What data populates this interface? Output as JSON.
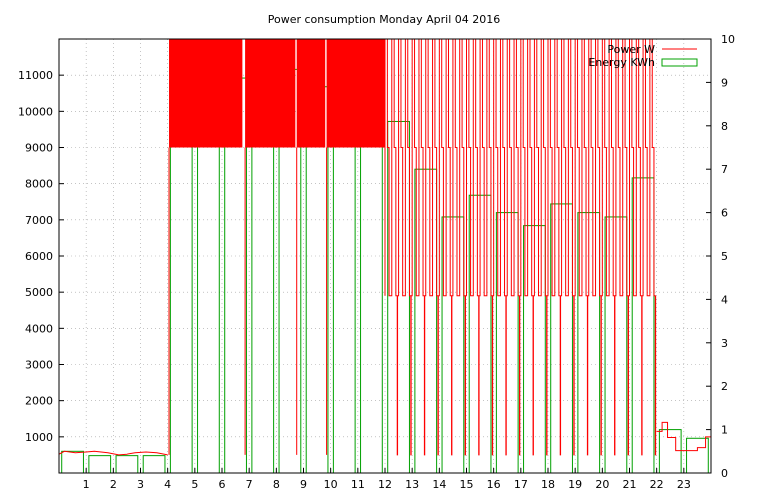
{
  "chart_data": {
    "type": "line",
    "title": "Power consumption Monday April 04 2016",
    "x_ticks": [
      "1",
      "2",
      "3",
      "4",
      "5",
      "6",
      "7",
      "8",
      "9",
      "10",
      "11",
      "12",
      "13",
      "14",
      "15",
      "16",
      "17",
      "18",
      "19",
      "20",
      "21",
      "22",
      "23"
    ],
    "xlim": [
      0,
      24
    ],
    "y_ticks": [
      "1000",
      "2000",
      "3000",
      "4000",
      "5000",
      "6000",
      "7000",
      "8000",
      "9000",
      "10000",
      "11000"
    ],
    "ylim": [
      0,
      12000
    ],
    "y2_ticks": [
      "0",
      "1",
      "2",
      "3",
      "4",
      "5",
      "6",
      "7",
      "8",
      "9",
      "10"
    ],
    "y2lim": [
      0,
      10
    ],
    "grid": true,
    "legend_position": "top-right",
    "colors": {
      "power": "#ff0000",
      "energy": "#00a000"
    },
    "series": [
      {
        "name": "Power W",
        "axis": "y",
        "style": "line",
        "baseline_segments": [
          [
            0.0,
            520
          ],
          [
            0.2,
            600
          ],
          [
            0.6,
            560
          ],
          [
            1.0,
            580
          ],
          [
            1.3,
            600
          ],
          [
            1.8,
            560
          ],
          [
            2.2,
            500
          ],
          [
            2.5,
            520
          ],
          [
            2.8,
            560
          ],
          [
            3.2,
            580
          ],
          [
            3.6,
            560
          ],
          [
            4.0,
            500
          ]
        ],
        "saturated_periods": [
          [
            4.05,
            6.75
          ],
          [
            6.85,
            8.7
          ],
          [
            8.75,
            9.8
          ],
          [
            9.85,
            12.0
          ]
        ],
        "cycling_periods": [
          {
            "from": 12.0,
            "to": 22.0,
            "high": 9000,
            "low": 4900
          }
        ],
        "tail_segments": [
          [
            22.0,
            1150
          ],
          [
            22.2,
            1400
          ],
          [
            22.4,
            980
          ],
          [
            22.7,
            620
          ],
          [
            23.2,
            620
          ],
          [
            23.5,
            700
          ],
          [
            23.8,
            1000
          ],
          [
            24.0,
            900
          ]
        ]
      },
      {
        "name": "Energy KWh",
        "axis": "y2",
        "style": "steps",
        "hours": [
          0,
          1,
          2,
          3,
          4,
          5,
          6,
          7,
          8,
          9,
          10,
          11,
          12,
          13,
          14,
          15,
          16,
          17,
          18,
          19,
          20,
          21,
          22,
          23
        ],
        "values": [
          0.5,
          0.4,
          0.4,
          0.4,
          8.8,
          9.3,
          9.1,
          9.2,
          9.3,
          8.9,
          9.0,
          9.2,
          8.1,
          7.0,
          5.9,
          6.4,
          6.0,
          5.7,
          6.2,
          6.0,
          5.9,
          6.8,
          1.0,
          0.8
        ]
      }
    ]
  }
}
